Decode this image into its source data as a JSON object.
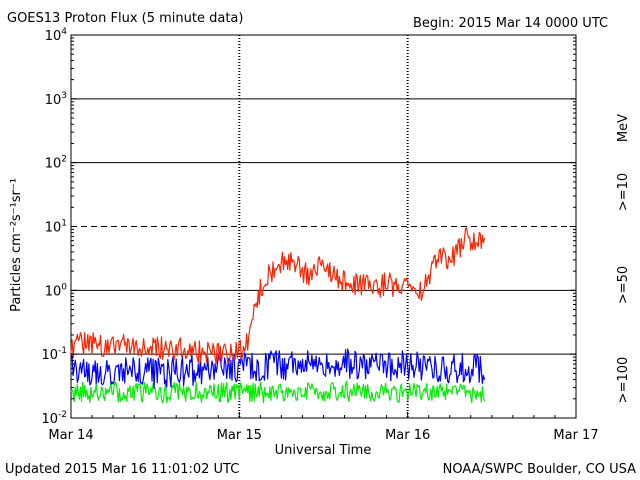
{
  "chart_data": {
    "type": "line",
    "title": "GOES13 Proton Flux (5 minute data)",
    "begin_label": "Begin: 2015 Mar 14 0000 UTC",
    "xlabel": "Universal Time",
    "ylabel": "Particles cm⁻²s⁻¹sr⁻¹",
    "updated_label": "Updated 2015 Mar 16 11:01:02 UTC",
    "credit_label": "NOAA/SWPC Boulder, CO USA",
    "yscale": "log",
    "ylim": [
      0.01,
      10000
    ],
    "xlim_hours": [
      0,
      72
    ],
    "x_ticks": [
      {
        "label": "Mar 14",
        "hour": 0
      },
      {
        "label": "Mar 15",
        "hour": 24
      },
      {
        "label": "Mar 16",
        "hour": 48
      },
      {
        "label": "Mar 17",
        "hour": 72
      }
    ],
    "y_ticks": [
      {
        "base": "10",
        "exp": "4",
        "value": 10000
      },
      {
        "base": "10",
        "exp": "3",
        "value": 1000
      },
      {
        "base": "10",
        "exp": "2",
        "value": 100
      },
      {
        "base": "10",
        "exp": "1",
        "value": 10
      },
      {
        "base": "10",
        "exp": "0",
        "value": 1
      },
      {
        "base": "10",
        "exp": "-1",
        "value": 0.1
      },
      {
        "base": "10",
        "exp": "-2",
        "value": 0.01
      }
    ],
    "horizontal_lines": [
      {
        "value": 1000,
        "style": "solid"
      },
      {
        "value": 100,
        "style": "solid"
      },
      {
        "value": 10,
        "style": "dashed"
      },
      {
        "value": 1,
        "style": "solid"
      },
      {
        "value": 0.1,
        "style": "solid"
      }
    ],
    "mev_label": "MeV",
    "series": [
      {
        "name": ">=10",
        "color": "#ff2200",
        "hours": [
          0,
          2,
          4,
          6,
          8,
          10,
          12,
          14,
          16,
          18,
          20,
          22,
          24,
          25,
          26,
          27,
          28,
          29,
          30,
          31,
          32,
          33,
          34,
          35,
          36,
          37,
          38,
          39,
          40,
          41,
          42,
          43,
          44,
          45,
          46,
          47,
          48,
          49,
          50,
          51,
          51.5,
          52,
          53,
          54,
          55,
          56,
          56.5,
          57,
          58,
          59
        ],
        "values": [
          0.13,
          0.15,
          0.14,
          0.13,
          0.15,
          0.14,
          0.13,
          0.12,
          0.12,
          0.11,
          0.11,
          0.1,
          0.11,
          0.14,
          0.4,
          1.0,
          1.7,
          2.1,
          2.7,
          3.0,
          2.5,
          2.0,
          1.8,
          2.2,
          2.3,
          1.9,
          1.6,
          1.4,
          1.3,
          1.2,
          1.2,
          1.1,
          1.1,
          1.3,
          1.2,
          1.1,
          1.2,
          1.3,
          1.0,
          1.5,
          2.2,
          2.5,
          3.5,
          3.0,
          4.0,
          6.0,
          7.0,
          5.5,
          6.0,
          5.0
        ]
      },
      {
        "name": ">=50",
        "color": "#0000ff",
        "hours": [
          0,
          4,
          8,
          12,
          16,
          20,
          24,
          28,
          32,
          36,
          40,
          44,
          48,
          52,
          56,
          59
        ],
        "values": [
          0.06,
          0.055,
          0.055,
          0.05,
          0.055,
          0.055,
          0.06,
          0.065,
          0.07,
          0.07,
          0.07,
          0.065,
          0.065,
          0.06,
          0.06,
          0.06
        ]
      },
      {
        "name": ">=100",
        "color": "#00ee00",
        "hours": [
          0,
          4,
          8,
          12,
          16,
          20,
          24,
          28,
          32,
          36,
          40,
          44,
          48,
          52,
          56,
          59
        ],
        "values": [
          0.025,
          0.025,
          0.025,
          0.025,
          0.025,
          0.025,
          0.025,
          0.025,
          0.026,
          0.026,
          0.026,
          0.025,
          0.025,
          0.025,
          0.025,
          0.025
        ]
      }
    ]
  }
}
